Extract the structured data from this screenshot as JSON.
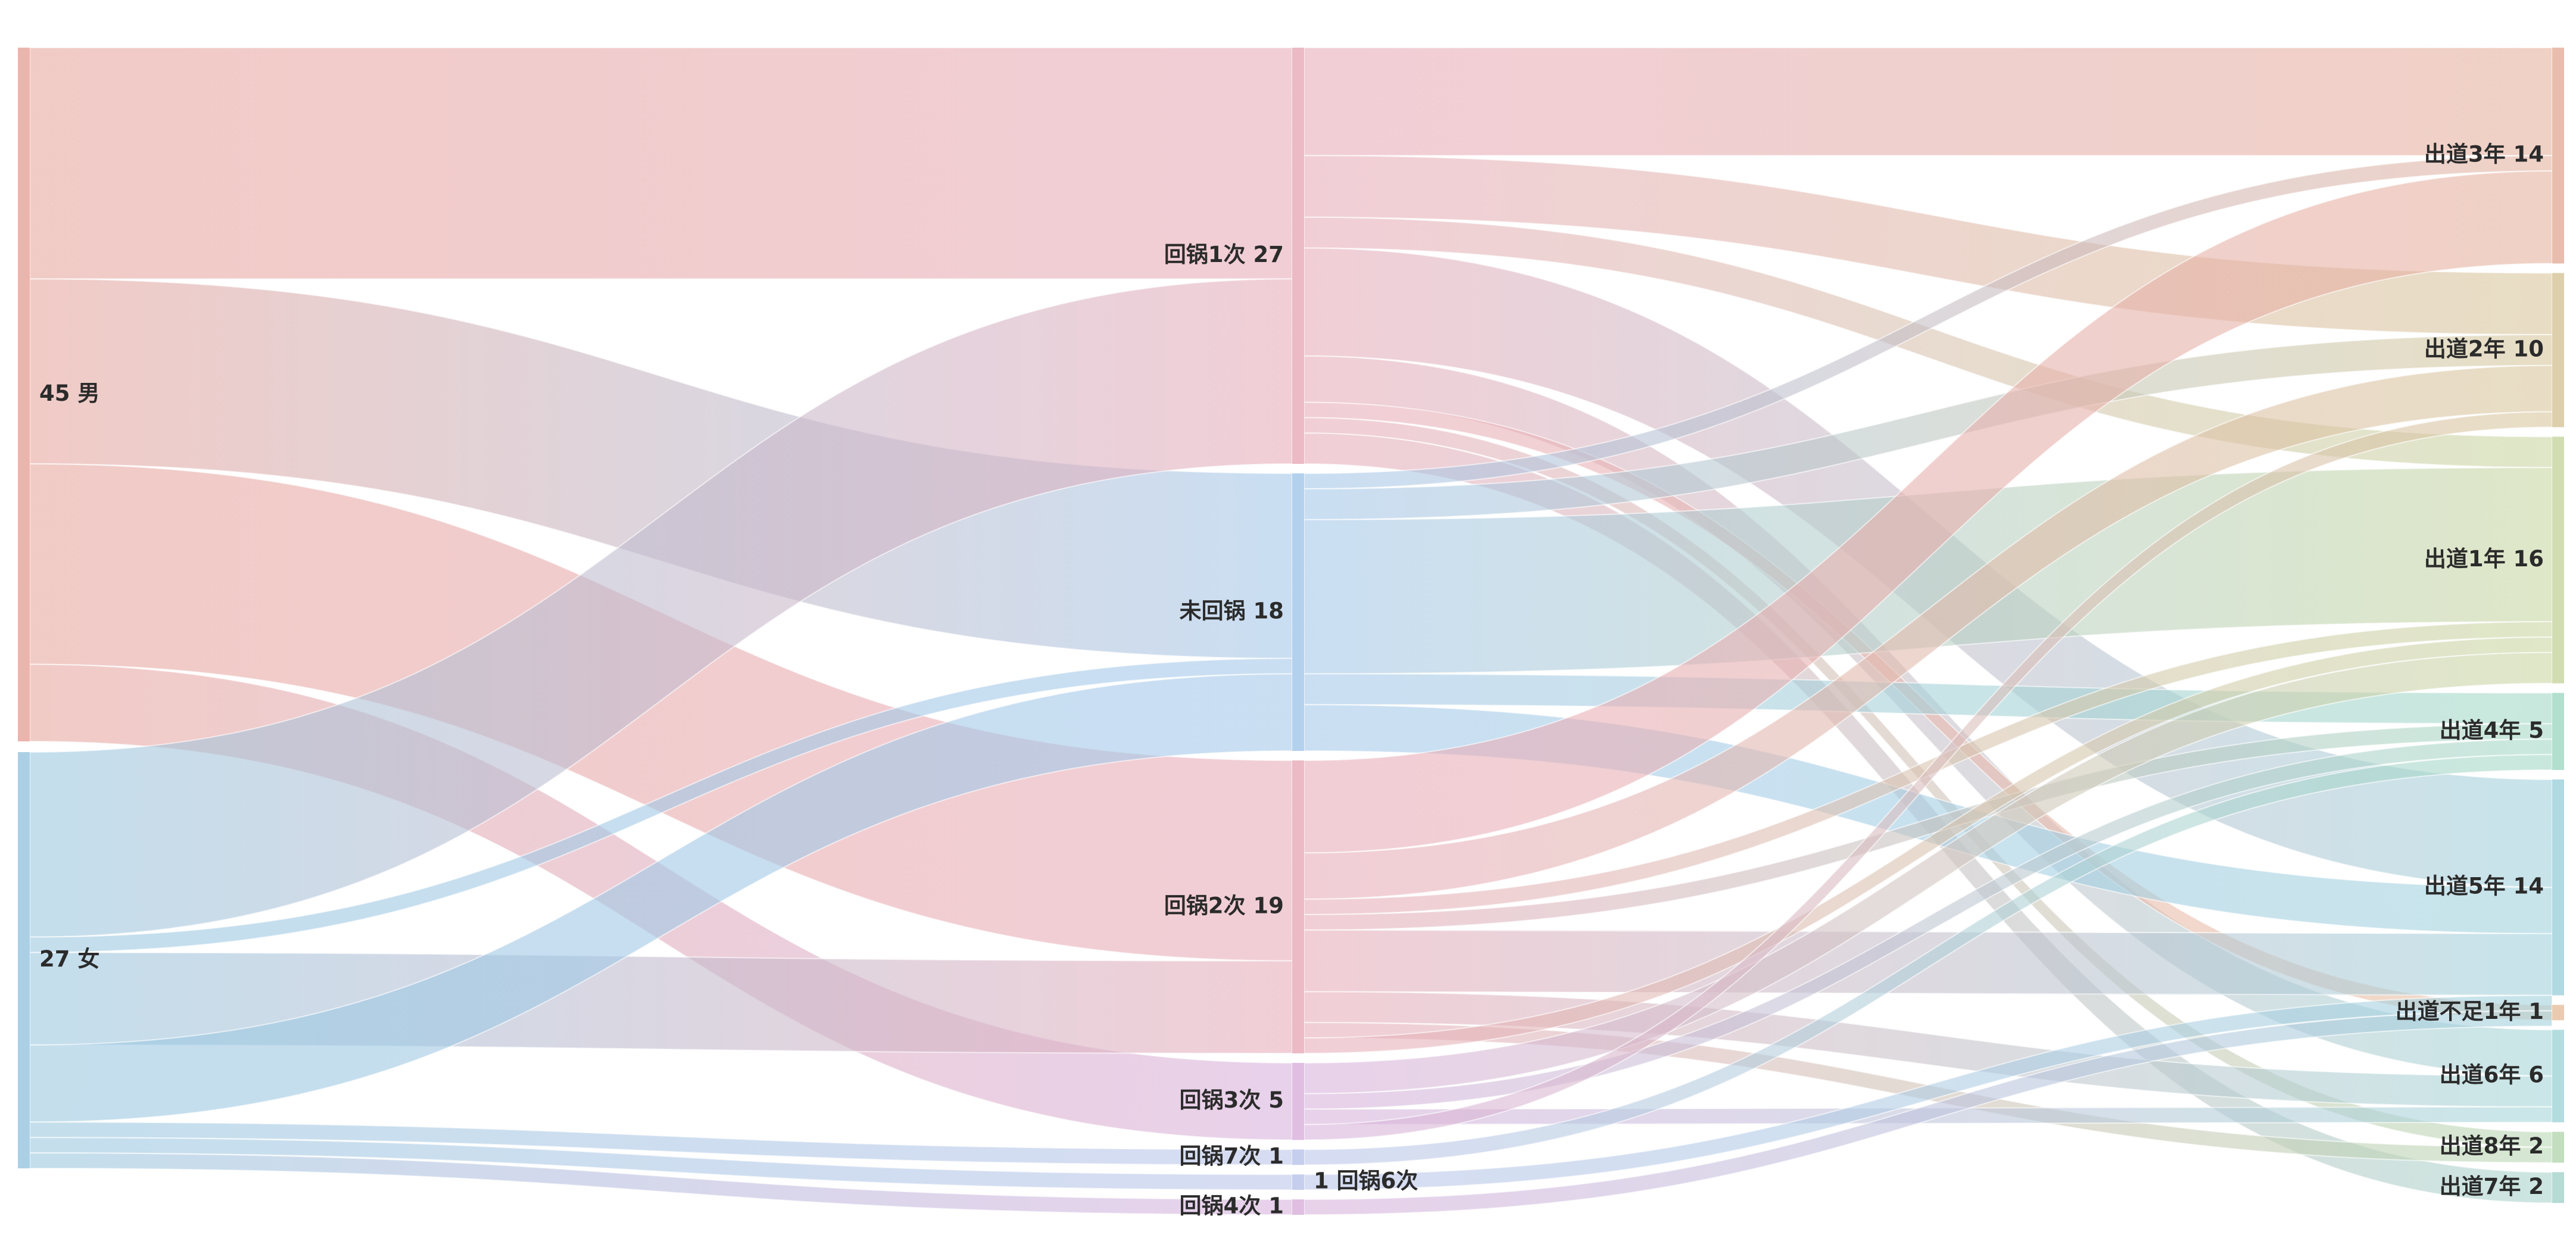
{
  "chart_data": {
    "type": "sankey",
    "nodes": [
      {
        "id": "男",
        "label": "45 男",
        "value": 45,
        "color": "#e7a8a0",
        "column": 0
      },
      {
        "id": "女",
        "label": "27 女",
        "value": 27,
        "color": "#9cc8e0",
        "column": 0
      },
      {
        "id": "回锅1次",
        "label": "回锅1次 27",
        "value": 27,
        "color": "#e8aebb",
        "column": 1
      },
      {
        "id": "未回锅",
        "label": "未回锅 18",
        "value": 18,
        "color": "#a6c9ea",
        "column": 1
      },
      {
        "id": "回锅2次",
        "label": "回锅2次 19",
        "value": 19,
        "color": "#e8aebb",
        "column": 1
      },
      {
        "id": "回锅3次",
        "label": "回锅3次 5",
        "value": 5,
        "color": "#d9b3dd",
        "column": 1
      },
      {
        "id": "回锅7次",
        "label": "回锅7次 1",
        "value": 1,
        "color": "#bcc6ea",
        "column": 1
      },
      {
        "id": "回锅6次",
        "label": "1 回锅6次",
        "value": 1,
        "color": "#bcc6ea",
        "column": 1
      },
      {
        "id": "回锅4次",
        "label": "回锅4次 1",
        "value": 1,
        "color": "#d9b3dd",
        "column": 1
      },
      {
        "id": "出道3年",
        "label": "出道3年 14",
        "value": 14,
        "color": "#e5b29f",
        "column": 2
      },
      {
        "id": "出道2年",
        "label": "出道2年 10",
        "value": 10,
        "color": "#d8c79d",
        "column": 2
      },
      {
        "id": "出道1年",
        "label": "出道1年 16",
        "value": 16,
        "color": "#c9d7a3",
        "column": 2
      },
      {
        "id": "出道4年",
        "label": "出道4年 5",
        "value": 5,
        "color": "#a5d9c6",
        "column": 2
      },
      {
        "id": "出道5年",
        "label": "出道5年 14",
        "value": 14,
        "color": "#a2d2dd",
        "column": 2
      },
      {
        "id": "出道不足1年",
        "label": "出道不足1年 1",
        "value": 1,
        "color": "#e8c2a2",
        "column": 2
      },
      {
        "id": "出道6年",
        "label": "出道6年 6",
        "value": 6,
        "color": "#a6d6d8",
        "column": 2
      },
      {
        "id": "出道8年",
        "label": "出道8年 2",
        "value": 2,
        "color": "#b8d8b4",
        "column": 2
      },
      {
        "id": "出道7年",
        "label": "出道7年 2",
        "value": 2,
        "color": "#a9d4cc",
        "column": 2
      }
    ],
    "links": [
      {
        "source": "男",
        "target": "回锅1次",
        "value": 15
      },
      {
        "source": "男",
        "target": "未回锅",
        "value": 12
      },
      {
        "source": "男",
        "target": "回锅2次",
        "value": 13
      },
      {
        "source": "男",
        "target": "回锅3次",
        "value": 5
      },
      {
        "source": "女",
        "target": "回锅1次",
        "value": 12
      },
      {
        "source": "女",
        "target": "未回锅",
        "value": 1
      },
      {
        "source": "女",
        "target": "回锅2次",
        "value": 6
      },
      {
        "source": "女",
        "target": "未回锅",
        "value": 5
      },
      {
        "source": "女",
        "target": "回锅7次",
        "value": 1
      },
      {
        "source": "女",
        "target": "回锅6次",
        "value": 1
      },
      {
        "source": "女",
        "target": "回锅4次",
        "value": 1
      },
      {
        "source": "回锅1次",
        "target": "出道3年",
        "value": 7
      },
      {
        "source": "回锅1次",
        "target": "出道2年",
        "value": 4
      },
      {
        "source": "回锅1次",
        "target": "出道1年",
        "value": 2
      },
      {
        "source": "回锅1次",
        "target": "出道5年",
        "value": 7
      },
      {
        "source": "回锅1次",
        "target": "出道6年",
        "value": 3
      },
      {
        "source": "回锅1次",
        "target": "出道不足1年",
        "value": 1
      },
      {
        "source": "回锅1次",
        "target": "出道8年",
        "value": 1
      },
      {
        "source": "回锅1次",
        "target": "出道7年",
        "value": 2
      },
      {
        "source": "未回锅",
        "target": "出道3年",
        "value": 1
      },
      {
        "source": "未回锅",
        "target": "出道2年",
        "value": 2
      },
      {
        "source": "未回锅",
        "target": "出道1年",
        "value": 10
      },
      {
        "source": "未回锅",
        "target": "出道4年",
        "value": 2
      },
      {
        "source": "未回锅",
        "target": "出道5年",
        "value": 3
      },
      {
        "source": "回锅2次",
        "target": "出道3年",
        "value": 6
      },
      {
        "source": "回锅2次",
        "target": "出道2年",
        "value": 3
      },
      {
        "source": "回锅2次",
        "target": "出道1年",
        "value": 1
      },
      {
        "source": "回锅2次",
        "target": "出道4年",
        "value": 1
      },
      {
        "source": "回锅2次",
        "target": "出道5年",
        "value": 4
      },
      {
        "source": "回锅2次",
        "target": "出道6年",
        "value": 2
      },
      {
        "source": "回锅2次",
        "target": "出道8年",
        "value": 1
      },
      {
        "source": "回锅2次",
        "target": "出道1年",
        "value": 1
      },
      {
        "source": "回锅3次",
        "target": "出道1年",
        "value": 2
      },
      {
        "source": "回锅3次",
        "target": "出道4年",
        "value": 1
      },
      {
        "source": "回锅3次",
        "target": "出道6年",
        "value": 1
      },
      {
        "source": "回锅3次",
        "target": "出道2年",
        "value": 1
      },
      {
        "source": "回锅7次",
        "target": "出道4年",
        "value": 1
      },
      {
        "source": "回锅6次",
        "target": "出道5年",
        "value": 1
      },
      {
        "source": "回锅4次",
        "target": "出道5年",
        "value": 1
      }
    ]
  }
}
